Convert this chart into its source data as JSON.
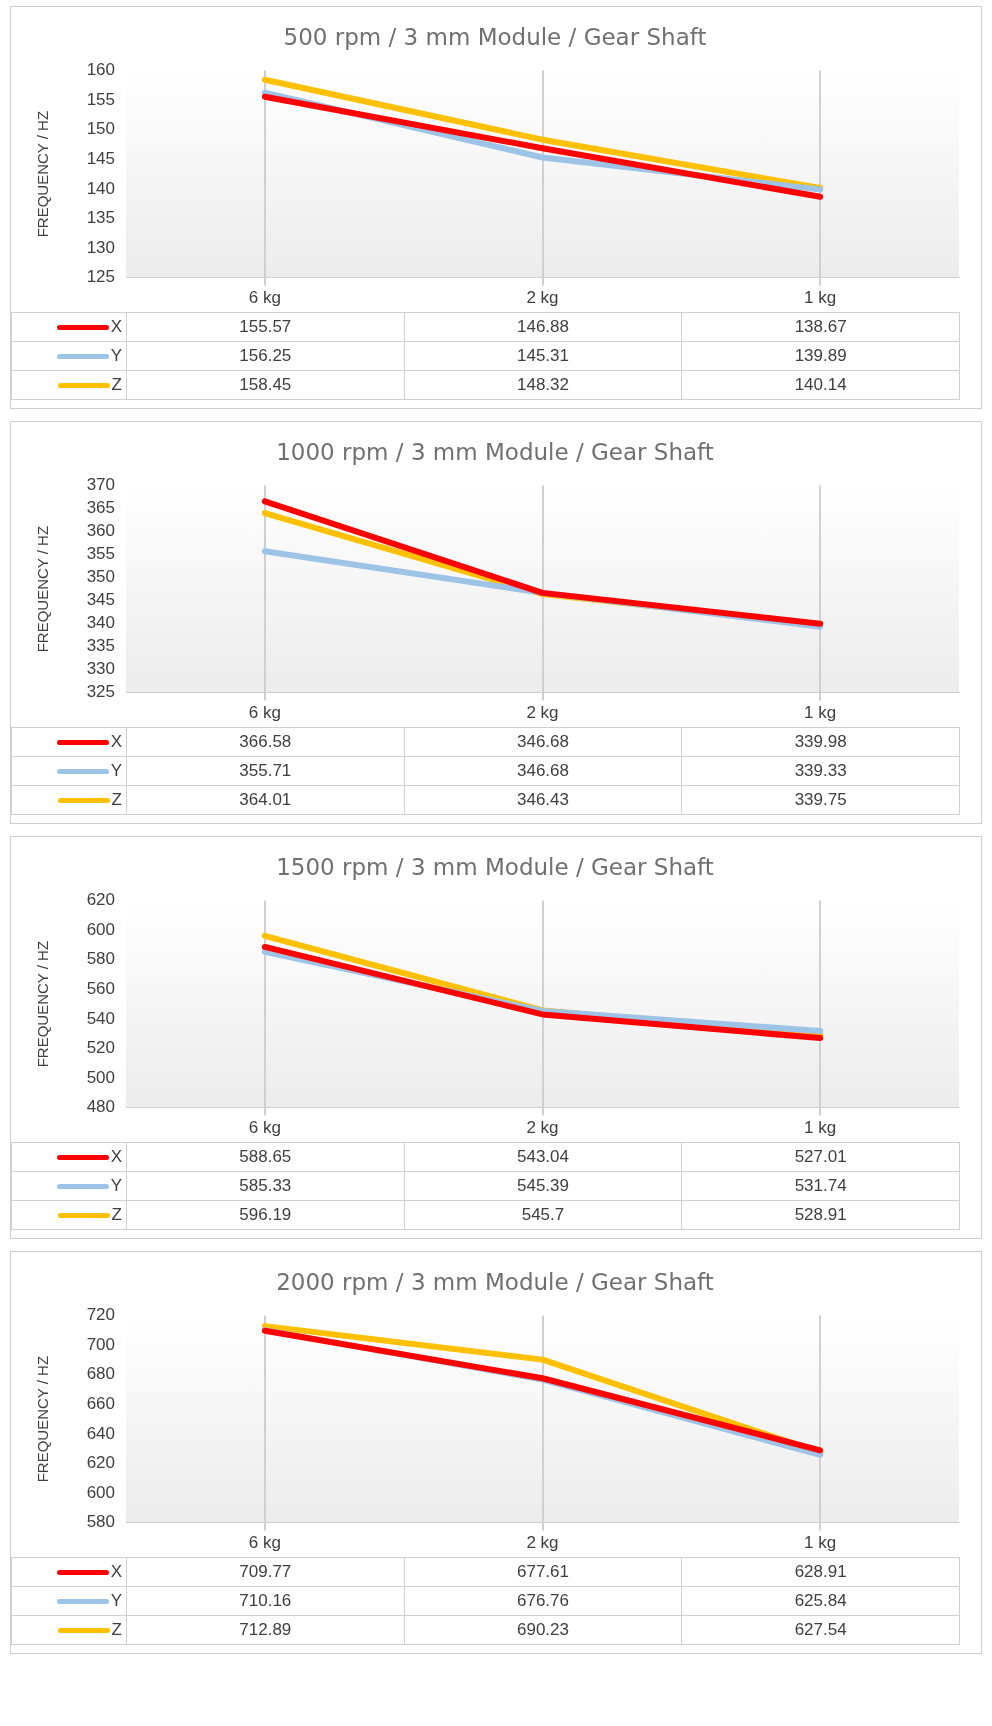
{
  "chart_data": [
    {
      "type": "line",
      "title": "500 rpm / 3 mm Module / Gear Shaft",
      "ylabel": "FREQUENCY / HZ",
      "categories": [
        "6 kg",
        "2 kg",
        "1 kg"
      ],
      "ylim": [
        125,
        160
      ],
      "yticks": [
        125,
        130,
        135,
        140,
        145,
        150,
        155,
        160
      ],
      "grid": "x",
      "legend": "bottom",
      "data_labels": true,
      "series": [
        {
          "name": "X",
          "color": "#ff0000",
          "values": [
            155.57,
            146.88,
            138.67
          ]
        },
        {
          "name": "Y",
          "color": "#9dc3e6",
          "values": [
            156.25,
            145.31,
            139.89
          ]
        },
        {
          "name": "Z",
          "color": "#ffc000",
          "values": [
            158.45,
            148.32,
            140.14
          ]
        }
      ]
    },
    {
      "type": "line",
      "title": "1000 rpm / 3 mm Module / Gear Shaft",
      "ylabel": "FREQUENCY / HZ",
      "categories": [
        "6 kg",
        "2 kg",
        "1 kg"
      ],
      "ylim": [
        325,
        370
      ],
      "yticks": [
        325,
        330,
        335,
        340,
        345,
        350,
        355,
        360,
        365,
        370
      ],
      "grid": "x",
      "legend": "bottom",
      "data_labels": true,
      "series": [
        {
          "name": "X",
          "color": "#ff0000",
          "values": [
            366.58,
            346.68,
            339.98
          ]
        },
        {
          "name": "Y",
          "color": "#9dc3e6",
          "values": [
            355.71,
            346.68,
            339.33
          ]
        },
        {
          "name": "Z",
          "color": "#ffc000",
          "values": [
            364.01,
            346.43,
            339.75
          ]
        }
      ]
    },
    {
      "type": "line",
      "title": "1500 rpm / 3 mm Module / Gear Shaft",
      "ylabel": "FREQUENCY / HZ",
      "categories": [
        "6 kg",
        "2 kg",
        "1 kg"
      ],
      "ylim": [
        480,
        620
      ],
      "yticks": [
        480,
        500,
        520,
        540,
        560,
        580,
        600,
        620
      ],
      "grid": "x",
      "legend": "bottom",
      "data_labels": true,
      "series": [
        {
          "name": "X",
          "color": "#ff0000",
          "values": [
            588.65,
            543.04,
            527.01
          ]
        },
        {
          "name": "Y",
          "color": "#9dc3e6",
          "values": [
            585.33,
            545.39,
            531.74
          ]
        },
        {
          "name": "Z",
          "color": "#ffc000",
          "values": [
            596.19,
            545.7,
            528.91
          ]
        }
      ]
    },
    {
      "type": "line",
      "title": "2000 rpm / 3 mm Module / Gear Shaft",
      "ylabel": "FREQUENCY / HZ",
      "categories": [
        "6 kg",
        "2 kg",
        "1 kg"
      ],
      "ylim": [
        580,
        720
      ],
      "yticks": [
        580,
        600,
        620,
        640,
        660,
        680,
        700,
        720
      ],
      "grid": "x",
      "legend": "bottom",
      "data_labels": true,
      "series": [
        {
          "name": "X",
          "color": "#ff0000",
          "values": [
            709.77,
            677.61,
            628.91
          ]
        },
        {
          "name": "Y",
          "color": "#9dc3e6",
          "values": [
            710.16,
            676.76,
            625.84
          ]
        },
        {
          "name": "Z",
          "color": "#ffc000",
          "values": [
            712.89,
            690.23,
            627.54
          ]
        }
      ]
    }
  ]
}
